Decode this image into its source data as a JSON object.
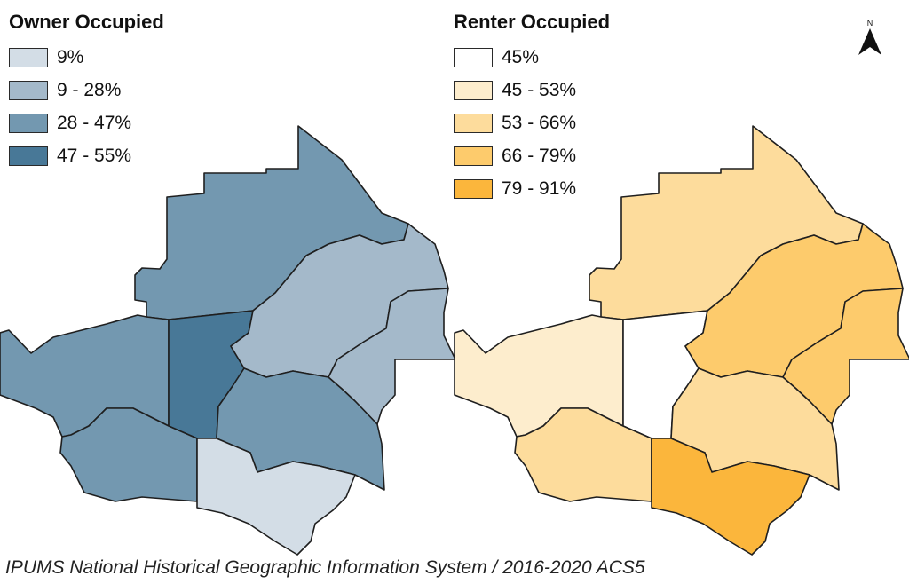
{
  "owner": {
    "title": "Owner Occupied",
    "legend": [
      {
        "label": "9%",
        "color": "#d3dde6"
      },
      {
        "label": "9 - 28%",
        "color": "#a4b9ca"
      },
      {
        "label": "28 - 47%",
        "color": "#7398b0"
      },
      {
        "label": "47 - 55%",
        "color": "#487897"
      }
    ]
  },
  "renter": {
    "title": "Renter Occupied",
    "legend": [
      {
        "label": "45%",
        "color": "#ffffff"
      },
      {
        "label": "45 - 53%",
        "color": "#fdedcd"
      },
      {
        "label": "53 - 66%",
        "color": "#fddc9c"
      },
      {
        "label": "66 - 79%",
        "color": "#fdcb6c"
      },
      {
        "label": "79 - 91%",
        "color": "#fbb63c"
      }
    ]
  },
  "regions": [
    {
      "id": "north-big",
      "owner_class": 2,
      "renter_class": 2
    },
    {
      "id": "west",
      "owner_class": 2,
      "renter_class": 1
    },
    {
      "id": "center-narrow",
      "owner_class": 3,
      "renter_class": 0
    },
    {
      "id": "northeast",
      "owner_class": 1,
      "renter_class": 3
    },
    {
      "id": "far-east",
      "owner_class": 1,
      "renter_class": 3
    },
    {
      "id": "southwest",
      "owner_class": 2,
      "renter_class": 2
    },
    {
      "id": "south-center",
      "owner_class": 2,
      "renter_class": 2
    },
    {
      "id": "south",
      "owner_class": 0,
      "renter_class": 4
    }
  ],
  "north_label": "N",
  "source": "IPUMS National Historical Geographic Information System / 2016-2020 ACS5"
}
